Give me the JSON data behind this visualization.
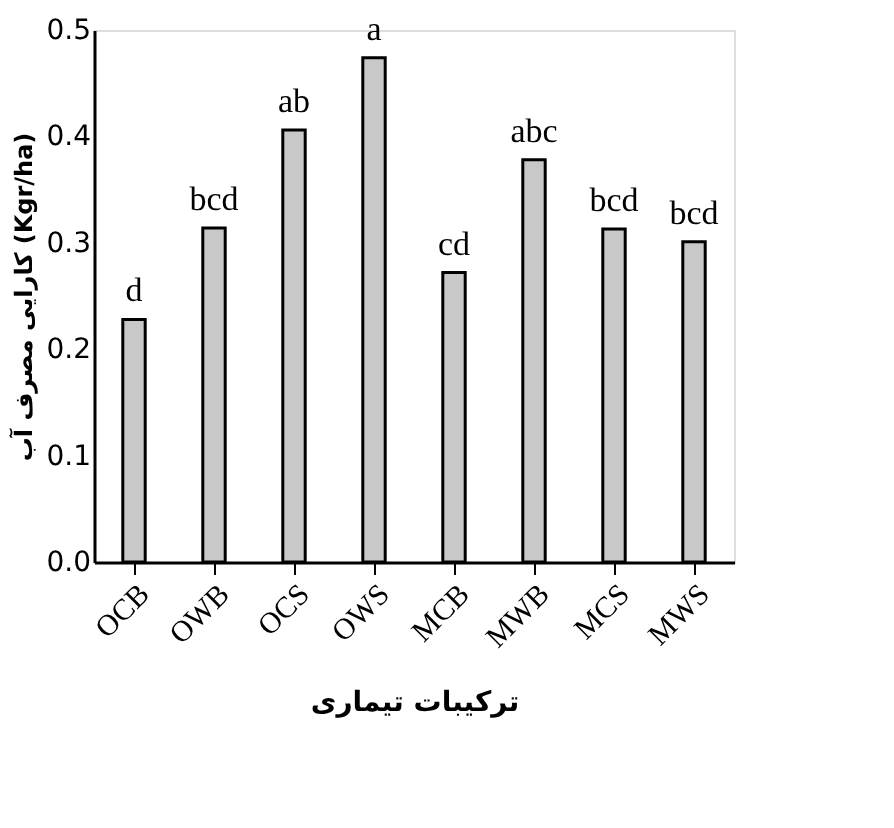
{
  "chart_data": {
    "type": "bar",
    "xlabel": "ترکیبات تیماری",
    "ylabel": "کارایی مصرف آب (Kgr/ha)",
    "categories": [
      "OCB",
      "OWB",
      "OCS",
      "OWS",
      "MCB",
      "MWB",
      "MCS",
      "MWS"
    ],
    "values": [
      0.228,
      0.314,
      0.406,
      0.474,
      0.272,
      0.378,
      0.313,
      0.301
    ],
    "color": "#c8c8c8",
    "ylim": [
      0,
      0.5
    ],
    "yticks": [
      {
        "value": 0,
        "label": "0.0"
      },
      0.1,
      0.2,
      0.3,
      0.4,
      0.5
    ],
    "grid": false,
    "annotations": [
      {
        "text": "d",
        "x": "OCB",
        "y": 0.228
      },
      {
        "text": "bcd",
        "x": "OWB",
        "y": 0.314
      },
      {
        "text": "ab",
        "x": "OCS",
        "y": 0.406
      },
      {
        "text": "a",
        "x": "OWS",
        "y": 0.474
      },
      {
        "text": "cd",
        "x": "MCB",
        "y": 0.272
      },
      {
        "text": "abc",
        "x": "MWB",
        "y": 0.378
      },
      {
        "text": "bcd",
        "x": "MCS",
        "y": 0.313
      },
      {
        "text": "bcd",
        "x": "MWS",
        "y": 0.301
      }
    ]
  }
}
